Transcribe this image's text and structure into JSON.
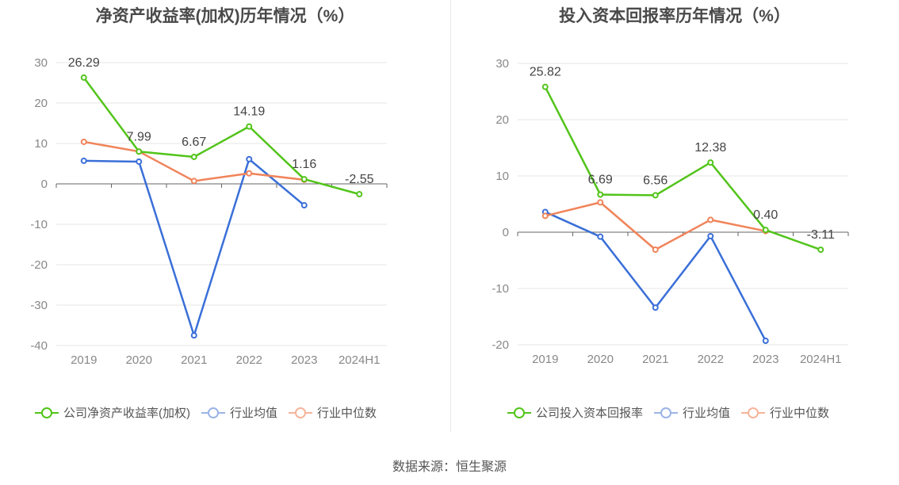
{
  "source": "数据来源：恒生聚源",
  "colors": {
    "company": "#52c41a",
    "avg": "#3a6fd8",
    "median": "#f0845a",
    "grid": "#e6e6e6",
    "axis": "#666666"
  },
  "legend_labels": [
    "行业均值",
    "行业中位数"
  ],
  "chart_data": [
    {
      "type": "line",
      "title": "净资产收益率(加权)历年情况（%）",
      "categories": [
        "2019",
        "2020",
        "2021",
        "2022",
        "2023",
        "2024H1"
      ],
      "ylim": [
        -40,
        30
      ],
      "yticks": [
        30,
        20,
        10,
        0,
        -10,
        -20,
        -30,
        -40
      ],
      "grid": true,
      "legend_position": "bottom",
      "series": [
        {
          "name": "公司净资产收益率(加权)",
          "key": "company",
          "values": [
            26.29,
            7.99,
            6.67,
            14.19,
            1.16,
            -2.55
          ],
          "labels": [
            "26.29",
            "7.99",
            "6.67",
            "14.19",
            "1.16",
            "-2.55"
          ]
        },
        {
          "name": "行业均值",
          "key": "avg",
          "values": [
            5.7,
            5.5,
            -37.5,
            6.1,
            -5.3,
            null
          ]
        },
        {
          "name": "行业中位数",
          "key": "median",
          "values": [
            10.4,
            8.0,
            0.7,
            2.6,
            1.0,
            null
          ]
        }
      ]
    },
    {
      "type": "line",
      "title": "投入资本回报率历年情况（%）",
      "categories": [
        "2019",
        "2020",
        "2021",
        "2022",
        "2023",
        "2024H1"
      ],
      "ylim": [
        -20,
        30
      ],
      "yticks": [
        30,
        20,
        10,
        0,
        -10,
        -20
      ],
      "grid": true,
      "legend_position": "bottom",
      "series": [
        {
          "name": "公司投入资本回报率",
          "key": "company",
          "values": [
            25.82,
            6.69,
            6.56,
            12.38,
            0.4,
            -3.11
          ],
          "labels": [
            "25.82",
            "6.69",
            "6.56",
            "12.38",
            "0.40",
            "-3.11"
          ]
        },
        {
          "name": "行业均值",
          "key": "avg",
          "values": [
            3.6,
            -0.8,
            -13.4,
            -0.7,
            -19.3,
            null
          ]
        },
        {
          "name": "行业中位数",
          "key": "median",
          "values": [
            2.9,
            5.3,
            -3.1,
            2.2,
            0.2,
            null
          ]
        }
      ]
    }
  ]
}
